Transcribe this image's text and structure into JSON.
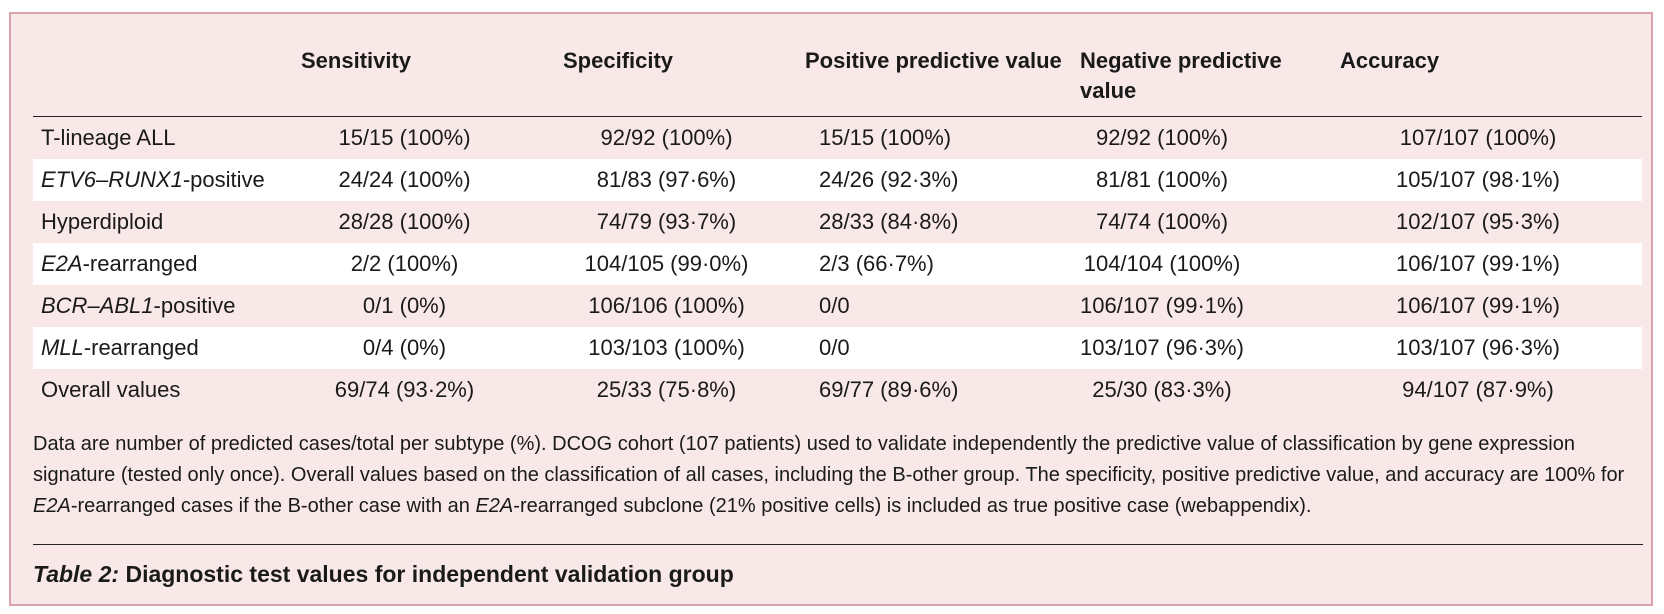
{
  "table": {
    "headers": [
      "",
      "Sensitivity",
      "Specificity",
      "Positive predictive value",
      "Negative predictive value",
      "Accuracy"
    ],
    "rows": [
      {
        "label_parts": [
          {
            "text": "T-lineage ALL",
            "italic": false
          }
        ],
        "cells": [
          "15/15 (100%)",
          "92/92 (100%)",
          "15/15 (100%)",
          "92/92 (100%)",
          "107/107 (100%)"
        ]
      },
      {
        "label_parts": [
          {
            "text": "ETV6–RUNX1",
            "italic": true
          },
          {
            "text": "-positive",
            "italic": false
          }
        ],
        "cells": [
          "24/24 (100%)",
          "81/83 (97·6%)",
          "24/26 (92·3%)",
          "81/81 (100%)",
          "105/107 (98·1%)"
        ]
      },
      {
        "label_parts": [
          {
            "text": "Hyperdiploid",
            "italic": false
          }
        ],
        "cells": [
          "28/28 (100%)",
          "74/79 (93·7%)",
          "28/33 (84·8%)",
          "74/74 (100%)",
          "102/107 (95·3%)"
        ]
      },
      {
        "label_parts": [
          {
            "text": "E2A",
            "italic": true
          },
          {
            "text": "-rearranged",
            "italic": false
          }
        ],
        "cells": [
          "2/2 (100%)",
          "104/105 (99·0%)",
          "2/3 (66·7%)",
          "104/104 (100%)",
          "106/107 (99·1%)"
        ]
      },
      {
        "label_parts": [
          {
            "text": "BCR–ABL1",
            "italic": true
          },
          {
            "text": "-positive",
            "italic": false
          }
        ],
        "cells": [
          "0/1 (0%)",
          "106/106 (100%)",
          "0/0",
          "106/107 (99·1%)",
          "106/107 (99·1%)"
        ]
      },
      {
        "label_parts": [
          {
            "text": "MLL",
            "italic": true
          },
          {
            "text": "-rearranged",
            "italic": false
          }
        ],
        "cells": [
          "0/4 (0%)",
          "103/103 (100%)",
          "0/0",
          "103/107 (96·3%)",
          "103/107 (96·3%)"
        ]
      },
      {
        "label_parts": [
          {
            "text": "Overall values",
            "italic": false
          }
        ],
        "cells": [
          "69/74 (93·2%)",
          "25/33 (75·8%)",
          "69/77 (89·6%)",
          "25/30 (83·3%)",
          "94/107 (87·9%)"
        ]
      }
    ]
  },
  "footnote": {
    "part1": "Data are number of predicted cases/total per subtype (%). DCOG cohort (107 patients) used to validate independently the predictive value of classification by gene expression signature (tested only once). Overall values based on the classification of all cases, including the B-other group. The specificity, positive predictive value, and accuracy are 100% for ",
    "italic1": "E2A",
    "part2": "-rearranged cases if the B-other case with an ",
    "italic2": "E2A",
    "part3": "-rearranged subclone (21% positive cells) is included as true positive case (webappendix)."
  },
  "caption": {
    "label": "Table 2:",
    "text": " Diagnostic test values for independent validation group"
  },
  "colors": {
    "background": "#f9e8e8",
    "border": "#d9a2ad",
    "stripe": "#ffffff"
  }
}
